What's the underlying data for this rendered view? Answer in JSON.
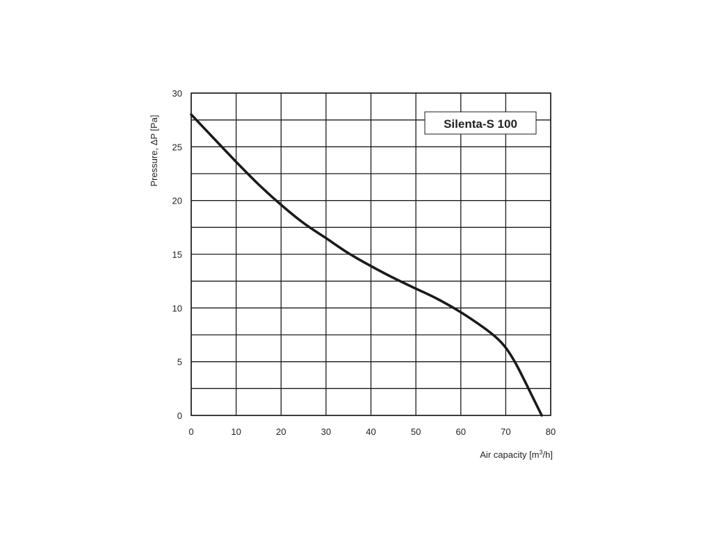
{
  "colors": {
    "background": "#ffffff",
    "grid": "#1a1a1a",
    "curve": "#1a1a1a",
    "text": "#222222"
  },
  "chart_data": {
    "type": "line",
    "title": "",
    "xlabel": "Air capacity [m³/h]",
    "ylabel": "Pressure, ΔP [Pa]",
    "xlim": [
      0,
      80
    ],
    "ylim": [
      0,
      30
    ],
    "x_ticks": [
      0,
      10,
      20,
      30,
      40,
      50,
      60,
      70,
      80
    ],
    "y_ticks": [
      0,
      5,
      10,
      15,
      20,
      25,
      30
    ],
    "x_tick_labels": [
      "0",
      "10",
      "20",
      "30",
      "40",
      "50",
      "60",
      "70",
      "80"
    ],
    "y_tick_labels": [
      "0",
      "5",
      "10",
      "15",
      "20",
      "25",
      "30"
    ],
    "minor_y_grid_step": 2.5,
    "grid": true,
    "legend": {
      "text": "Silenta-S 100",
      "placement": "top-right"
    },
    "series": [
      {
        "name": "Silenta-S 100",
        "x": [
          0,
          5,
          10,
          15,
          20,
          25,
          30,
          35,
          40,
          45,
          50,
          55,
          60,
          65,
          68,
          70,
          72,
          74,
          76,
          78
        ],
        "y": [
          28.0,
          25.8,
          23.6,
          21.5,
          19.6,
          17.9,
          16.5,
          15.1,
          13.9,
          12.8,
          11.8,
          10.8,
          9.6,
          8.2,
          7.2,
          6.3,
          5.0,
          3.4,
          1.7,
          0.0
        ]
      }
    ]
  }
}
